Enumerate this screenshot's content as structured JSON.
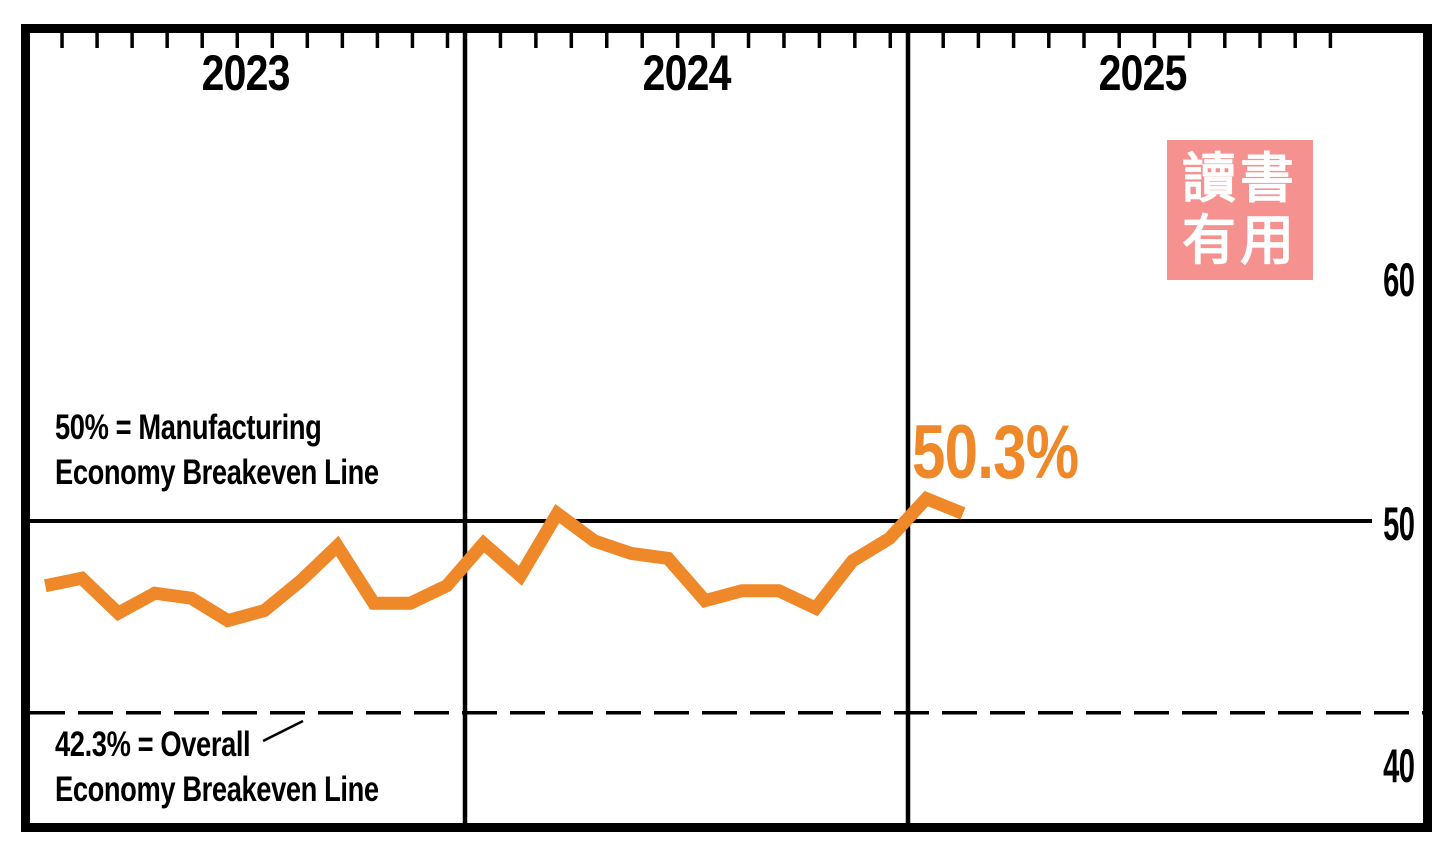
{
  "chart_data": {
    "type": "line",
    "x": [
      "Jan 2023",
      "Feb 2023",
      "Mar 2023",
      "Apr 2023",
      "May 2023",
      "Jun 2023",
      "Jul 2023",
      "Aug 2023",
      "Sep 2023",
      "Oct 2023",
      "Nov 2023",
      "Dec 2023",
      "Jan 2024",
      "Feb 2024",
      "Mar 2024",
      "Apr 2024",
      "May 2024",
      "Jun 2024",
      "Jul 2024",
      "Aug 2024",
      "Sep 2024",
      "Oct 2024",
      "Nov 2024",
      "Dec 2024",
      "Jan 2025",
      "Feb 2025"
    ],
    "values": [
      47.4,
      47.7,
      46.3,
      47.1,
      46.9,
      46.0,
      46.4,
      47.6,
      49.0,
      46.7,
      46.7,
      47.4,
      49.1,
      47.8,
      50.3,
      49.2,
      48.7,
      48.5,
      46.8,
      47.2,
      47.2,
      46.5,
      48.4,
      49.3,
      50.9,
      50.3
    ],
    "sections": [
      "2023",
      "2024",
      "2025"
    ],
    "y_ticks": [
      60,
      50,
      40
    ],
    "y_tick_labels": [
      "60",
      "50",
      "40"
    ],
    "ylim": [
      38,
      70
    ],
    "grid": "none",
    "legend": "none",
    "line_color": "#EF8829",
    "axis_color": "#000000",
    "reference_lines": [
      {
        "value": 50,
        "style": "solid",
        "label_line1": "50% = Manufacturing",
        "label_line2": "Economy Breakeven Line"
      },
      {
        "value": 42.3,
        "style": "dashed",
        "label_line1": "42.3% = Overall",
        "label_line2": "Economy Breakeven Line"
      }
    ],
    "end_label": "50.3%"
  },
  "stamp": {
    "row1": "讀書",
    "row2": "有用",
    "background": "#F5928F",
    "text_color": "#FFFFFF"
  }
}
